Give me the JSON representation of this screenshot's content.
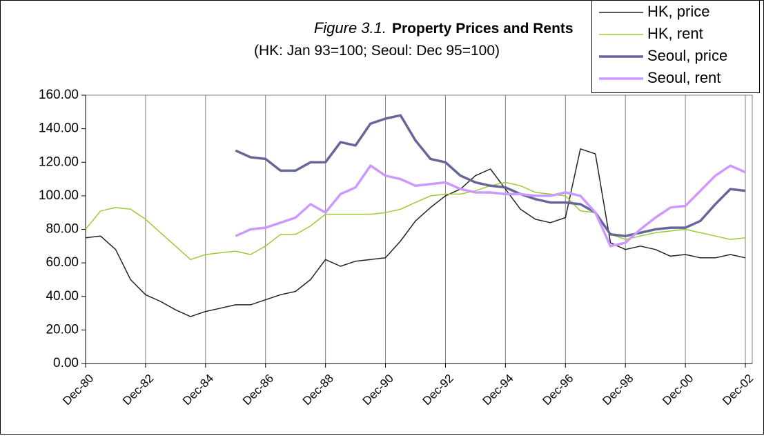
{
  "chart_data": {
    "type": "line",
    "figure_label": "Figure 3.1.",
    "title": "Property Prices and Rents",
    "subtitle": "(HK: Jan 93=100; Seoul: Dec 95=100)",
    "categories": [
      "Dec-80",
      null,
      null,
      null,
      "Dec-82",
      null,
      null,
      null,
      "Dec-84",
      null,
      null,
      null,
      "Dec-86",
      null,
      null,
      null,
      "Dec-88",
      null,
      null,
      null,
      "Dec-90",
      null,
      null,
      null,
      "Dec-92",
      null,
      null,
      null,
      "Dec-94",
      null,
      null,
      null,
      "Dec-96",
      null,
      null,
      null,
      "Dec-98",
      null,
      null,
      null,
      "Dec-00",
      null,
      null,
      null,
      "Dec-02"
    ],
    "series": [
      {
        "name": "HK, price",
        "color": "#222222",
        "width": 1.5,
        "values": [
          75,
          76,
          68,
          50,
          41,
          37,
          32,
          28,
          31,
          33,
          35,
          35,
          38,
          41,
          43,
          50,
          62,
          58,
          61,
          62,
          63,
          73,
          85,
          93,
          100,
          104,
          112,
          116,
          104,
          92,
          86,
          84,
          87,
          128,
          125,
          72,
          68,
          70,
          68,
          64,
          65,
          63,
          63,
          65,
          63
        ]
      },
      {
        "name": "HK, rent",
        "color": "#99cc33",
        "width": 1.5,
        "values": [
          80,
          91,
          93,
          92,
          86,
          78,
          70,
          62,
          65,
          66,
          67,
          65,
          70,
          77,
          77,
          82,
          89,
          89,
          89,
          89,
          90,
          92,
          96,
          100,
          101,
          101,
          103,
          106,
          108,
          106,
          102,
          101,
          100,
          91,
          90,
          77,
          74,
          76,
          78,
          79,
          80,
          78,
          76,
          74,
          75
        ]
      },
      {
        "name": "Seoul, price",
        "color": "#666699",
        "width": 3.5,
        "values": [
          null,
          null,
          null,
          null,
          null,
          null,
          null,
          null,
          null,
          null,
          127,
          123,
          122,
          115,
          115,
          120,
          120,
          132,
          130,
          143,
          146,
          148,
          133,
          122,
          120,
          112,
          108,
          106,
          105,
          101,
          98,
          96,
          96,
          95,
          90,
          77,
          76,
          78,
          80,
          81,
          81,
          85,
          95,
          104,
          103
        ]
      },
      {
        "name": "Seoul, rent",
        "color": "#cc99ff",
        "width": 3.5,
        "values": [
          null,
          null,
          null,
          null,
          null,
          null,
          null,
          null,
          null,
          null,
          76,
          80,
          81,
          84,
          87,
          95,
          90,
          101,
          105,
          118,
          112,
          110,
          106,
          107,
          108,
          104,
          102,
          102,
          101,
          101,
          100,
          100,
          102,
          100,
          90,
          70,
          72,
          80,
          87,
          93,
          94,
          103,
          112,
          118,
          114
        ]
      }
    ],
    "ylim": [
      0,
      160
    ],
    "yticks": [
      {
        "value": 0,
        "label": "0.00"
      },
      {
        "value": 20,
        "label": "20.00"
      },
      {
        "value": 40,
        "label": "40.00"
      },
      {
        "value": 60,
        "label": "60.00"
      },
      {
        "value": 80,
        "label": "80.00"
      },
      {
        "value": 100,
        "label": "100.00"
      },
      {
        "value": 120,
        "label": "120.00"
      },
      {
        "value": 140,
        "label": "140.00"
      },
      {
        "value": 160,
        "label": "160.00"
      }
    ],
    "grid": "x",
    "legend": "top-right"
  }
}
